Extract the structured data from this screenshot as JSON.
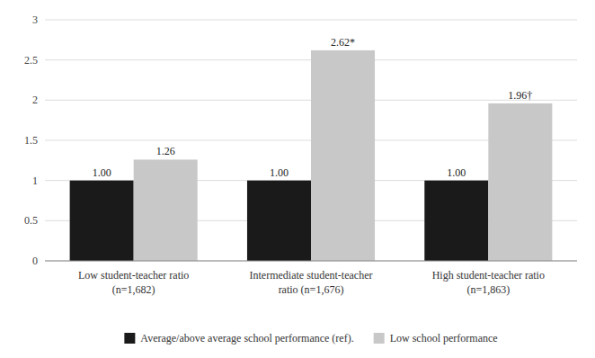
{
  "chart_data": {
    "type": "bar",
    "categories": [
      "Low student-teacher ratio\n(n=1,682)",
      "Intermediate student-teacher\nratio (n=1,676)",
      "High student-teacher ratio\n(n=1,863)"
    ],
    "series": [
      {
        "name": "Average/above average school performance (ref).",
        "color": "#1a1a1a",
        "values": [
          1.0,
          1.0,
          1.0
        ],
        "value_labels": [
          "1.00",
          "1.00",
          "1.00"
        ]
      },
      {
        "name": "Low school performance",
        "color": "#c8c8c8",
        "values": [
          1.26,
          2.62,
          1.96
        ],
        "value_labels": [
          "1.26",
          "2.62*",
          "1.96†"
        ]
      }
    ],
    "ylim": [
      0,
      3
    ],
    "yticks": [
      0,
      0.5,
      1,
      1.5,
      2,
      2.5,
      3
    ],
    "grid": true,
    "data_labels": true,
    "legend": "bottom"
  }
}
